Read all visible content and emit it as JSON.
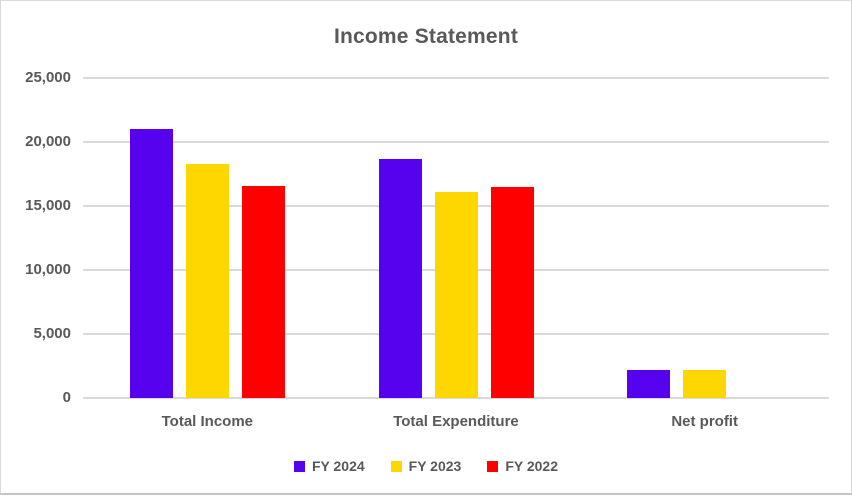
{
  "chart_data": {
    "type": "bar",
    "title": "Income Statement",
    "categories": [
      "Total Income",
      "Total Expenditure",
      "Net profit"
    ],
    "series": [
      {
        "name": "FY 2024",
        "color": "#5602EE",
        "values": [
          21000,
          18700,
          2150
        ]
      },
      {
        "name": "FY 2023",
        "color": "#FFD700",
        "values": [
          18300,
          16100,
          2150
        ]
      },
      {
        "name": "FY 2022",
        "color": "#FF0000",
        "values": [
          16550,
          16450,
          0
        ]
      }
    ],
    "xlabel": "",
    "ylabel": "",
    "ylim": [
      0,
      25000
    ],
    "yticks": [
      0,
      5000,
      10000,
      15000,
      20000,
      25000
    ],
    "ytick_labels": [
      "0",
      "5,000",
      "10,000",
      "15,000",
      "20,000",
      "25,000"
    ],
    "grid": true,
    "legend_position": "bottom",
    "colors": {
      "grid": "#D9D9D9",
      "axis_text": "#595959",
      "title_text": "#595959",
      "frame_border": "#D9D9D9"
    }
  }
}
